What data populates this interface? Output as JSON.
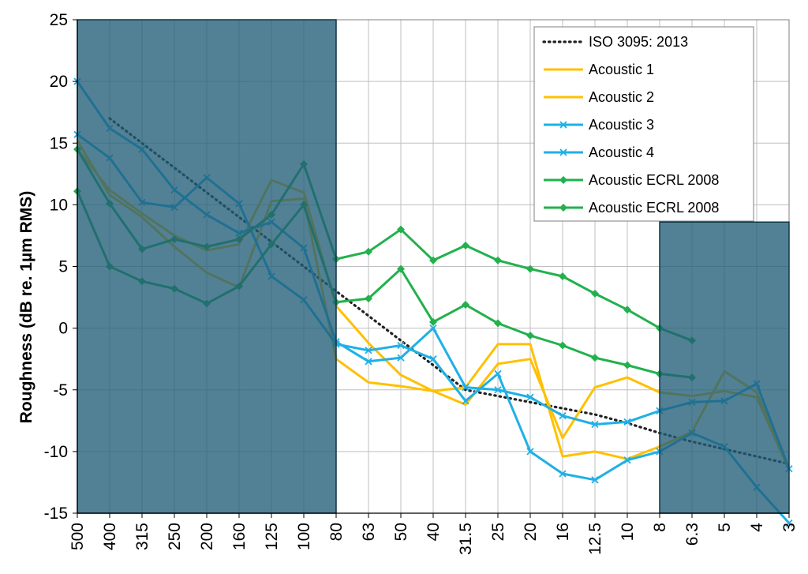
{
  "chart_data": {
    "type": "line",
    "title": "",
    "xlabel": "",
    "ylabel": "Roughness (dB re. 1µm RMS)",
    "ylim": [
      -15,
      25
    ],
    "yticks": [
      25,
      20,
      15,
      10,
      5,
      0,
      -5,
      -10,
      -15
    ],
    "grid": true,
    "legend_position": "top-right",
    "categories": [
      "500",
      "400",
      "315",
      "250",
      "200",
      "160",
      "125",
      "100",
      "80",
      "63",
      "50",
      "40",
      "31.5",
      "25",
      "20",
      "16",
      "12.5",
      "10",
      "8",
      "6.3",
      "5",
      "4",
      "3"
    ],
    "shaded_regions": [
      {
        "from": "500",
        "to": "80",
        "ymin": -15,
        "ymax": 25
      },
      {
        "from": "8",
        "to": "3",
        "ymin": -15,
        "ymax": 8.6
      }
    ],
    "series": [
      {
        "name": "ISO 3095: 2013",
        "style": "dotted",
        "color": "#222222",
        "marker": "none",
        "values": [
          null,
          17,
          15,
          13,
          11,
          9,
          7,
          5,
          3,
          1,
          -1,
          -3,
          -5,
          -5.5,
          -6,
          -6.5,
          -7,
          -7.7,
          -8.5,
          -9.2,
          -9.8,
          -10.4,
          -11.0
        ]
      },
      {
        "name": "Acoustic 1",
        "style": "solid",
        "color": "#FFC000",
        "marker": "none",
        "values": [
          14.5,
          11.2,
          9.3,
          7.5,
          6.3,
          6.8,
          12.0,
          11.0,
          1.8,
          -1.2,
          -3.8,
          -5.1,
          -4.8,
          -1.3,
          -1.3,
          -10.4,
          -10.0,
          -10.6,
          -9.6,
          -8.4,
          -3.5,
          -5.2,
          -11.5
        ]
      },
      {
        "name": "Acoustic 2",
        "style": "solid",
        "color": "#FFC000",
        "marker": "none",
        "values": [
          15.2,
          10.8,
          9.0,
          6.6,
          4.5,
          3.3,
          10.3,
          10.5,
          -2.5,
          -4.4,
          -4.7,
          -5.1,
          -6.2,
          -2.9,
          -2.5,
          -8.9,
          -4.8,
          -4.0,
          -5.2,
          -5.5,
          -5.1,
          -5.6,
          -11.5
        ]
      },
      {
        "name": "Acoustic 3",
        "style": "solid",
        "color": "#1FB0E6",
        "marker": "x",
        "values": [
          15.7,
          13.8,
          10.2,
          9.8,
          12.2,
          10.1,
          4.2,
          2.3,
          -1.3,
          -1.8,
          -1.4,
          -2.5,
          -5.9,
          -3.7,
          -10.0,
          -11.8,
          -12.3,
          -10.7,
          -10.0,
          -8.5,
          -9.6,
          -12.9,
          -15.8
        ]
      },
      {
        "name": "Acoustic 4",
        "style": "solid",
        "color": "#1FB0E6",
        "marker": "x",
        "values": [
          20.0,
          16.2,
          14.5,
          11.2,
          9.2,
          7.7,
          8.6,
          6.5,
          -1.1,
          -2.7,
          -2.4,
          0.0,
          -4.8,
          -5.0,
          -5.6,
          -7.1,
          -7.8,
          -7.6,
          -6.7,
          -6.0,
          -5.9,
          -4.5,
          -11.4
        ]
      },
      {
        "name": "Acoustic ECRL 2008",
        "style": "solid",
        "color": "#22B14C",
        "marker": "diamond",
        "values": [
          11.1,
          5.0,
          3.8,
          3.2,
          2.0,
          3.4,
          6.8,
          10.0,
          2.1,
          2.4,
          4.8,
          0.5,
          1.9,
          0.4,
          -0.6,
          -1.4,
          -2.4,
          -3.0,
          -3.7,
          -4.0,
          null,
          null,
          null
        ]
      },
      {
        "name": "Acoustic ECRL 2008",
        "style": "solid",
        "color": "#22B14C",
        "marker": "diamond",
        "values": [
          14.5,
          10.1,
          6.4,
          7.2,
          6.6,
          7.2,
          9.2,
          13.3,
          5.6,
          6.2,
          8.0,
          5.5,
          6.7,
          5.5,
          4.8,
          4.2,
          2.8,
          1.5,
          0.0,
          -1.0,
          null,
          null,
          null
        ]
      }
    ]
  }
}
